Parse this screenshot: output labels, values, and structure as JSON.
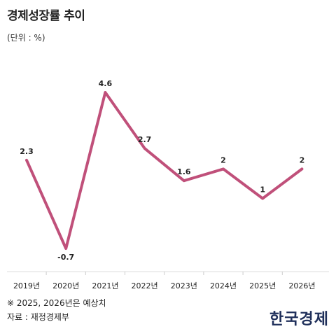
{
  "chart_data": {
    "type": "line",
    "title": "경제성장률 추이",
    "unit_label": "(단위 : %)",
    "categories": [
      "2019년",
      "2020년",
      "2021년",
      "2022년",
      "2023년",
      "2024년",
      "2025년",
      "2026년"
    ],
    "values": [
      2.3,
      -0.7,
      4.6,
      2.7,
      1.6,
      2,
      1,
      2
    ],
    "value_labels": [
      "2.3",
      "-0.7",
      "4.6",
      "2.7",
      "1.6",
      "2",
      "1",
      "2"
    ],
    "line_color": "#c0507a",
    "grid": false,
    "legend": "none"
  },
  "footer": {
    "note": "※ 2025, 2026년은 예상치",
    "source": "자료 : 재정경제부",
    "logo_text": "한국경제"
  }
}
